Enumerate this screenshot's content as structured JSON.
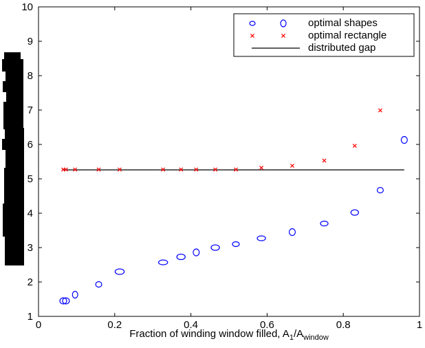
{
  "chart_data": {
    "type": "scatter",
    "title": "",
    "xlabel": {
      "base": "Fraction of winding window filled, A",
      "sub1": "1",
      "mid": "/A",
      "sub2": "window"
    },
    "ylabel": "",
    "xlim": [
      0,
      1
    ],
    "ylim": [
      1,
      10
    ],
    "x_ticks": [
      0,
      0.2,
      0.4,
      0.6,
      0.8,
      1
    ],
    "x_tick_labels": [
      "0",
      "0.2",
      "0.4",
      "0.6",
      "0.8",
      "1"
    ],
    "y_ticks": [
      1,
      2,
      3,
      4,
      5,
      6,
      7,
      8,
      9,
      10
    ],
    "y_tick_labels": [
      "1",
      "2",
      "3",
      "4",
      "5",
      "6",
      "7",
      "8",
      "9",
      "10"
    ],
    "grid": false,
    "legend_position": "top-right",
    "series": [
      {
        "name": "optimal shapes",
        "marker": "ellipse",
        "color": "#0000ff",
        "points": [
          {
            "x": 0.065,
            "y": 1.45,
            "w": 0.018,
            "h": 0.18
          },
          {
            "x": 0.072,
            "y": 1.45,
            "w": 0.018,
            "h": 0.18
          },
          {
            "x": 0.096,
            "y": 1.63,
            "w": 0.014,
            "h": 0.2
          },
          {
            "x": 0.158,
            "y": 1.93,
            "w": 0.016,
            "h": 0.16
          },
          {
            "x": 0.213,
            "y": 2.3,
            "w": 0.024,
            "h": 0.16
          },
          {
            "x": 0.327,
            "y": 2.57,
            "w": 0.024,
            "h": 0.14
          },
          {
            "x": 0.374,
            "y": 2.73,
            "w": 0.022,
            "h": 0.16
          },
          {
            "x": 0.414,
            "y": 2.86,
            "w": 0.016,
            "h": 0.2
          },
          {
            "x": 0.464,
            "y": 3.0,
            "w": 0.022,
            "h": 0.16
          },
          {
            "x": 0.518,
            "y": 3.1,
            "w": 0.018,
            "h": 0.14
          },
          {
            "x": 0.585,
            "y": 3.27,
            "w": 0.022,
            "h": 0.14
          },
          {
            "x": 0.666,
            "y": 3.45,
            "w": 0.016,
            "h": 0.2
          },
          {
            "x": 0.75,
            "y": 3.7,
            "w": 0.02,
            "h": 0.14
          },
          {
            "x": 0.83,
            "y": 4.02,
            "w": 0.02,
            "h": 0.16
          },
          {
            "x": 0.897,
            "y": 4.67,
            "w": 0.016,
            "h": 0.16
          },
          {
            "x": 0.96,
            "y": 6.13,
            "w": 0.016,
            "h": 0.2
          }
        ]
      },
      {
        "name": "optimal rectangle",
        "marker": "x",
        "color": "#ff0000",
        "points": [
          {
            "x": 0.065,
            "y": 5.27
          },
          {
            "x": 0.072,
            "y": 5.27
          },
          {
            "x": 0.096,
            "y": 5.27
          },
          {
            "x": 0.158,
            "y": 5.27
          },
          {
            "x": 0.213,
            "y": 5.27
          },
          {
            "x": 0.327,
            "y": 5.27
          },
          {
            "x": 0.374,
            "y": 5.27
          },
          {
            "x": 0.414,
            "y": 5.27
          },
          {
            "x": 0.464,
            "y": 5.27
          },
          {
            "x": 0.518,
            "y": 5.27
          },
          {
            "x": 0.585,
            "y": 5.32
          },
          {
            "x": 0.666,
            "y": 5.38
          },
          {
            "x": 0.75,
            "y": 5.53
          },
          {
            "x": 0.83,
            "y": 5.96
          },
          {
            "x": 0.897,
            "y": 6.99
          }
        ]
      },
      {
        "name": "distributed gap",
        "marker": "line",
        "color": "#000000",
        "points": [
          {
            "x": 0.062,
            "y": 5.26
          },
          {
            "x": 0.96,
            "y": 5.26
          }
        ]
      }
    ]
  }
}
